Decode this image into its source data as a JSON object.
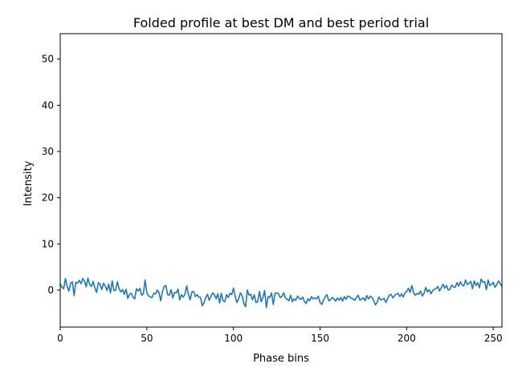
{
  "chart_data": {
    "type": "line",
    "title": "Folded profile at best DM and best period trial",
    "xlabel": "Phase bins",
    "ylabel": "Intensity",
    "xlim": [
      0,
      255
    ],
    "ylim": [
      -8,
      55.5
    ],
    "xticks": [
      0,
      50,
      100,
      150,
      200,
      250
    ],
    "yticks": [
      0,
      10,
      20,
      30,
      40,
      50
    ],
    "grid": false,
    "series_color": "#1f77b4",
    "series": [
      {
        "values": [
          1.3,
          0.6,
          0.3,
          2.5,
          0.8,
          -0.2,
          1.5,
          1.8,
          -1.2,
          1.7,
          1.5,
          2.1,
          1.4,
          2.5,
          2.0,
          0.7,
          2.6,
          1.2,
          0.8,
          1.9,
          0.4,
          -0.5,
          1.6,
          1.3,
          0.1,
          1.5,
          0.9,
          -0.1,
          1.3,
          -0.6,
          2.0,
          -0.1,
          0.0,
          1.8,
          0.3,
          -0.4,
          0.1,
          -0.9,
          0.2,
          -1.8,
          -0.9,
          -0.7,
          -1.5,
          -1.9,
          0.3,
          -0.2,
          0.4,
          -1.1,
          -0.8,
          2.2,
          -0.6,
          -1.2,
          -1.5,
          -1.6,
          -0.7,
          -0.8,
          0.0,
          -0.5,
          -2.3,
          -0.3,
          0.8,
          1.0,
          -1.0,
          -1.1,
          0.1,
          -1.7,
          -0.5,
          -0.6,
          0.2,
          -2.1,
          -1.0,
          -1.5,
          -0.9,
          0.9,
          -0.9,
          -2.1,
          -0.4,
          -0.3,
          -1.4,
          -1.0,
          -1.5,
          -1.6,
          -3.4,
          -2.7,
          -1.6,
          -0.9,
          -2.2,
          -1.4,
          -0.6,
          -1.0,
          -1.9,
          -0.8,
          -2.8,
          -0.7,
          -2.3,
          -2.5,
          -1.0,
          -1.6,
          -0.7,
          -1.0,
          0.4,
          -1.3,
          -2.7,
          -1.9,
          -0.6,
          -1.2,
          -2.9,
          -3.6,
          0.0,
          -1.1,
          -0.9,
          -2.1,
          -1.0,
          -2.7,
          -2.5,
          -0.3,
          -2.5,
          -1.6,
          -0.1,
          -3.8,
          -1.4,
          -1.6,
          -0.6,
          -3.1,
          -0.7,
          -0.6,
          -0.8,
          -1.6,
          -1.4,
          -0.6,
          -1.7,
          -2.0,
          -2.3,
          -1.1,
          -2.5,
          -1.9,
          -2.2,
          -1.3,
          -1.8,
          -2.0,
          -1.5,
          -2.5,
          -2.9,
          -1.9,
          -2.3,
          -1.4,
          -1.9,
          -1.7,
          -1.9,
          -1.3,
          -2.7,
          -3.1,
          -2.2,
          -1.4,
          -1.0,
          -2.3,
          -2.1,
          -1.6,
          -1.9,
          -2.4,
          -1.7,
          -2.2,
          -1.6,
          -2.4,
          -1.4,
          -2.0,
          -1.3,
          -1.4,
          -1.8,
          -1.9,
          -2.2,
          -1.6,
          -1.1,
          -2.2,
          -1.9,
          -1.7,
          -2.3,
          -1.2,
          -1.9,
          -1.3,
          -1.6,
          -2.3,
          -3.2,
          -2.6,
          -1.5,
          -2.1,
          -2.0,
          -1.8,
          -2.7,
          -1.8,
          -1.1,
          -0.9,
          -1.7,
          -1.2,
          -0.9,
          -0.7,
          -1.4,
          -0.8,
          -1.5,
          -0.6,
          -0.3,
          0.4,
          -0.5,
          1.0,
          -0.6,
          -1.1,
          -0.7,
          -0.9,
          -0.2,
          -1.3,
          -0.7,
          0.6,
          -0.4,
          0.1,
          -0.8,
          -0.1,
          0.2,
          0.3,
          0.8,
          -0.2,
          0.5,
          1.3,
          0.4,
          1.0,
          0.0,
          0.2,
          1.1,
          0.7,
          0.6,
          1.6,
          0.9,
          1.8,
          1.1,
          0.9,
          2.2,
          1.2,
          1.5,
          1.9,
          0.3,
          2.0,
          1.0,
          1.6,
          0.5,
          2.4,
          1.7,
          1.8,
          0.1,
          2.2,
          1.0,
          1.2,
          1.7,
          0.6,
          1.2,
          2.0,
          1.4,
          0.8
        ]
      }
    ]
  }
}
